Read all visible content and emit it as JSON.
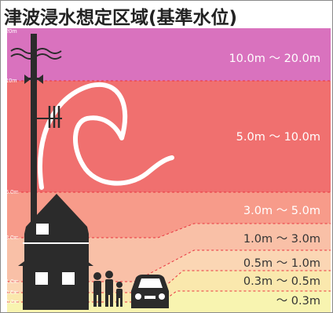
{
  "title": "津波浸水想定区域(基準水位)",
  "chart_data": {
    "type": "area",
    "unit": "m",
    "y_ticks": [
      "20m",
      "10m",
      "5.0m",
      "3.0m",
      "1.0m",
      "0.5m",
      "0.3m"
    ],
    "zones": [
      {
        "label": "10.0m ～ 20.0m",
        "from": 10.0,
        "to": 20.0,
        "color": "#d972be"
      },
      {
        "label": "5.0m ～ 10.0m",
        "from": 5.0,
        "to": 10.0,
        "color": "#f0706f"
      },
      {
        "label": "3.0m ～ 5.0m",
        "from": 3.0,
        "to": 5.0,
        "color": "#f79b8a"
      },
      {
        "label": "1.0m ～ 3.0m",
        "from": 1.0,
        "to": 3.0,
        "color": "#f9c0a7"
      },
      {
        "label": "0.5m ～ 1.0m",
        "from": 0.5,
        "to": 1.0,
        "color": "#fbd6b4"
      },
      {
        "label": "0.3m ～ 0.5m",
        "from": 0.3,
        "to": 0.5,
        "color": "#fae8ad"
      },
      {
        "label": "～ 0.3m",
        "from": 0.0,
        "to": 0.3,
        "color": "#f8f4b0"
      }
    ]
  }
}
